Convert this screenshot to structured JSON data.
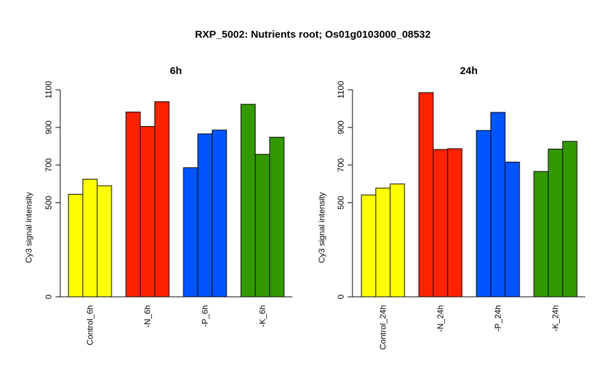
{
  "title": "RXP_5002: Nutrients root; Os01g0103000_08532",
  "chart_data": [
    {
      "type": "bar",
      "title": "6h",
      "ylabel": "Cy3 signal intensity",
      "ylim": [
        0,
        1100
      ],
      "yticks": [
        "0",
        "500",
        "700",
        "900",
        "1100"
      ],
      "groups": [
        {
          "label": "Control_6h",
          "color": "#ffff00",
          "values": [
            545,
            625,
            590
          ]
        },
        {
          "label": "-N_6h",
          "color": "#ff2200",
          "values": [
            982,
            905,
            1037
          ]
        },
        {
          "label": "-P_6h",
          "color": "#0055ff",
          "values": [
            686,
            866,
            886
          ]
        },
        {
          "label": "-K_6h",
          "color": "#339900",
          "values": [
            1023,
            757,
            848
          ]
        }
      ]
    },
    {
      "type": "bar",
      "title": "24h",
      "ylabel": "Cy3 signal intensity",
      "ylim": [
        0,
        1100
      ],
      "yticks": [
        "0",
        "500",
        "700",
        "900",
        "1100"
      ],
      "groups": [
        {
          "label": "Control_24h",
          "color": "#ffff00",
          "values": [
            541,
            578,
            600
          ]
        },
        {
          "label": "-N_24h",
          "color": "#ff2200",
          "values": [
            1085,
            783,
            787
          ]
        },
        {
          "label": "-P_24h",
          "color": "#0055ff",
          "values": [
            884,
            980,
            716
          ]
        },
        {
          "label": "-K_24h",
          "color": "#339900",
          "values": [
            666,
            785,
            826
          ]
        }
      ]
    }
  ]
}
